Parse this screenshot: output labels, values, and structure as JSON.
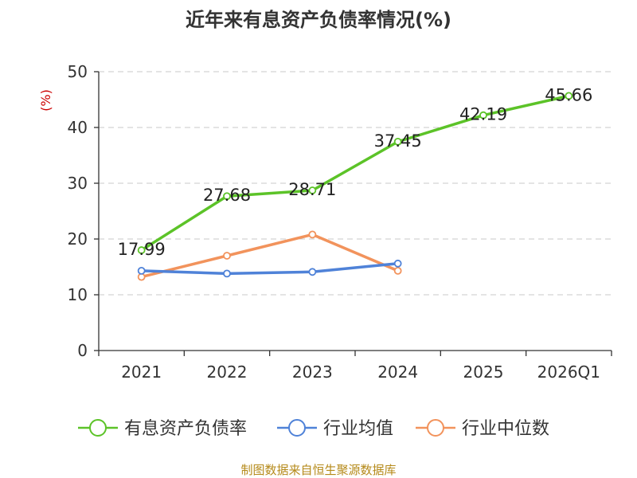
{
  "chart_data": {
    "type": "line",
    "title": "近年来有息资产负债率情况(%)",
    "ylabel": "(%)",
    "xlabel": "",
    "ylim": [
      0,
      50
    ],
    "yticks": [
      0,
      10,
      20,
      30,
      40,
      50
    ],
    "categories": [
      "2021",
      "2022",
      "2023",
      "2024",
      "2025",
      "2026Q1"
    ],
    "grid": true,
    "legend_position": "bottom",
    "series": [
      {
        "name": "有息资产负债率",
        "color": "#5cc328",
        "values": [
          17.99,
          27.68,
          28.71,
          37.45,
          42.19,
          45.66
        ],
        "labels": [
          "17.99",
          "27.68",
          "28.71",
          "37.45",
          "42.19",
          "45.66"
        ],
        "show_labels": true
      },
      {
        "name": "行业均值",
        "color": "#4f82d8",
        "values": [
          14.3,
          13.8,
          14.1,
          15.6,
          null,
          null
        ],
        "show_labels": false
      },
      {
        "name": "行业中位数",
        "color": "#f2935c",
        "values": [
          13.2,
          17.0,
          20.8,
          14.3,
          null,
          null
        ],
        "show_labels": false
      }
    ]
  },
  "footer": {
    "source": "制图数据来自恒生聚源数据库"
  }
}
